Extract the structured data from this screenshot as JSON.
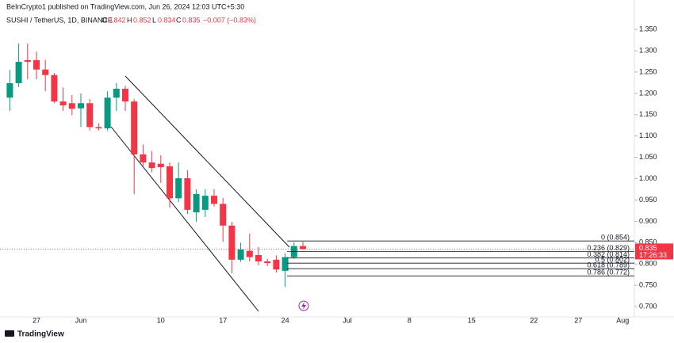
{
  "chart_data": {
    "type": "candlestick",
    "attribution": "BeInCrypto1 published on TradingView.com, Jun 26, 2024 12:03 UTC+5:30",
    "symbol": "SUSHI / TetherUS, 1D, BINANCE",
    "change": "−0.007 (−0.83%)",
    "countdown": "17:26:33",
    "logo": "TradingView",
    "up_color": "#089981",
    "down_color": "#f23645",
    "categories": [
      null,
      null,
      null,
      "27",
      null,
      null,
      null,
      null,
      "Jun",
      null,
      null,
      null,
      null,
      null,
      null,
      null,
      null,
      "10",
      null,
      null,
      null,
      null,
      null,
      null,
      "17",
      null,
      null,
      null,
      null,
      null,
      null,
      "24",
      null,
      null,
      null,
      null,
      null,
      null,
      "Jul",
      null,
      null,
      null,
      null,
      null,
      null,
      "8",
      null,
      null,
      null,
      null,
      null,
      null,
      "15",
      null,
      null,
      null,
      null,
      null,
      null,
      "22",
      null,
      null,
      null,
      null,
      "27",
      null,
      null,
      null,
      null,
      "Aug",
      null
    ],
    "open": [
      1.19,
      1.224,
      1.278,
      1.278,
      1.256,
      1.243,
      1.181,
      1.177,
      1.165,
      1.177,
      1.121,
      1.118,
      1.19,
      1.211,
      1.181,
      1.057,
      1.038,
      1.035,
      1.029,
      0.954,
      1.001,
      0.921,
      0.927,
      0.96,
      0.941,
      0.89,
      0.81,
      0.831,
      0.821,
      0.806,
      0.81,
      0.784,
      0.816,
      0.842,
      null,
      null,
      null,
      null,
      null,
      null,
      null,
      null,
      null,
      null,
      null,
      null,
      null,
      null,
      null,
      null,
      null,
      null,
      null,
      null,
      null,
      null,
      null,
      null,
      null,
      null,
      null,
      null,
      null,
      null,
      null,
      null,
      null,
      null,
      null,
      null,
      null
    ],
    "high": [
      1.255,
      1.317,
      1.317,
      1.298,
      1.279,
      1.248,
      1.214,
      1.196,
      1.2,
      1.187,
      1.13,
      1.205,
      1.224,
      1.218,
      1.187,
      1.08,
      1.065,
      1.055,
      1.038,
      1.038,
      1.02,
      0.975,
      0.975,
      0.975,
      0.955,
      0.899,
      0.85,
      0.871,
      0.84,
      0.812,
      0.82,
      0.825,
      0.851,
      0.852,
      null,
      null,
      null,
      null,
      null,
      null,
      null,
      null,
      null,
      null,
      null,
      null,
      null,
      null,
      null,
      null,
      null,
      null,
      null,
      null,
      null,
      null,
      null,
      null,
      null,
      null,
      null,
      null,
      null,
      null,
      null,
      null,
      null,
      null,
      null,
      null,
      null
    ],
    "low": [
      1.159,
      1.215,
      1.233,
      1.233,
      1.205,
      1.177,
      1.159,
      1.149,
      1.121,
      1.113,
      1.113,
      1.113,
      1.159,
      1.159,
      0.964,
      1.03,
      1.015,
      0.99,
      0.932,
      0.945,
      0.917,
      0.899,
      0.91,
      0.935,
      0.852,
      0.778,
      0.805,
      0.806,
      0.797,
      0.795,
      0.78,
      0.746,
      0.812,
      0.834,
      null,
      null,
      null,
      null,
      null,
      null,
      null,
      null,
      null,
      null,
      null,
      null,
      null,
      null,
      null,
      null,
      null,
      null,
      null,
      null,
      null,
      null,
      null,
      null,
      null,
      null,
      null,
      null,
      null,
      null,
      null,
      null,
      null,
      null,
      null,
      null,
      null
    ],
    "close": [
      1.224,
      1.274,
      1.274,
      1.256,
      1.243,
      1.181,
      1.172,
      1.164,
      1.177,
      1.121,
      1.118,
      1.19,
      1.211,
      1.181,
      1.057,
      1.038,
      1.025,
      1.027,
      0.954,
      1.001,
      0.927,
      0.964,
      0.96,
      0.941,
      0.89,
      0.81,
      0.834,
      0.816,
      0.806,
      0.802,
      0.787,
      0.816,
      0.842,
      0.835,
      null,
      null,
      null,
      null,
      null,
      null,
      null,
      null,
      null,
      null,
      null,
      null,
      null,
      null,
      null,
      null,
      null,
      null,
      null,
      null,
      null,
      null,
      null,
      null,
      null,
      null,
      null,
      null,
      null,
      null,
      null,
      null,
      null,
      null,
      null,
      null,
      null
    ],
    "fib_levels": [
      {
        "value": 0.854,
        "label": "0 (0.854)"
      },
      {
        "value": 0.829,
        "label": "0.236 (0.829)"
      },
      {
        "value": 0.814,
        "label": "0.382 (0.814)"
      },
      {
        "value": 0.802,
        "label": "0.5 (0.802)"
      },
      {
        "value": 0.789,
        "label": "0.618 (0.789)"
      },
      {
        "value": 0.772,
        "label": "0.786 (0.772)"
      }
    ],
    "ylim": [
      0.676,
      1.419
    ],
    "yticks": [
      {
        "value": 0.7,
        "label": "0.700"
      },
      {
        "value": 0.75,
        "label": "0.750"
      },
      {
        "value": 0.8,
        "label": "0.800"
      },
      {
        "value": 0.85,
        "label": "0.850"
      },
      {
        "value": 0.9,
        "label": "0.900"
      },
      {
        "value": 0.95,
        "label": "0.950"
      },
      {
        "value": 1.0,
        "label": "1.000"
      },
      {
        "value": 1.05,
        "label": "1.050"
      },
      {
        "value": 1.1,
        "label": "1.100"
      },
      {
        "value": 1.15,
        "label": "1.150"
      },
      {
        "value": 1.2,
        "label": "1.200"
      },
      {
        "value": 1.25,
        "label": "1.250"
      },
      {
        "value": 1.3,
        "label": "1.300"
      },
      {
        "value": 1.35,
        "label": "1.350"
      }
    ]
  }
}
